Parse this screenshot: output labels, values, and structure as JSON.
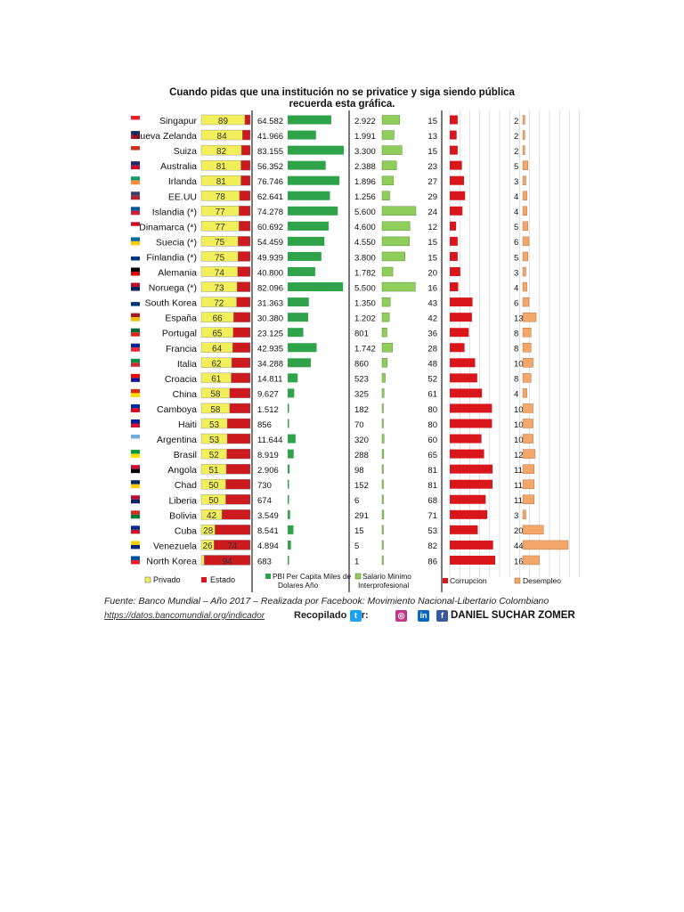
{
  "title": {
    "line1": "Cuando pidas que una institución no se privatice y siga siendo pública",
    "line2": "recuerda esta gráfica."
  },
  "legend": {
    "privado": "Privado",
    "estado": "Estado",
    "pbi": "PBI Per Capita Miles de Dolares Año",
    "salario": "Salario Minimo Interprofesional",
    "corrupcion": "Corrupcion",
    "desempleo": "Desempleo"
  },
  "footer": {
    "source": "Fuente: Banco Mundial – Año 2017 –  Realizada por Facebook: Movimiento Nacional-Libertario Colombiano",
    "url": "https://datos.bancomundial.org/indicador",
    "compiled_by": "Recopilado por:",
    "author": "DANIEL SUCHAR ZOMER"
  },
  "colors": {
    "privado": "#f2f05a",
    "estado": "#cc1a1f",
    "pbi": "#2ea34a",
    "salario": "#8fce5a",
    "corrupcion": "#d8161c",
    "desempleo": "#f4a76b"
  },
  "icons": [
    "twitter-icon",
    "instagram-icon",
    "linkedin-icon",
    "facebook-icon"
  ],
  "chart_data": {
    "type": "bar",
    "title": "Cuando pidas que una institución no se privatice y siga siendo pública recuerda esta gráfica.",
    "categories": [
      "Singapur",
      "Nueva Zelanda",
      "Suiza",
      "Australia",
      "Irlanda",
      "EE.UU",
      "Islandia (*)",
      "Dinamarca (*)",
      "Suecia (*)",
      "Finlandia (*)",
      "Alemania",
      "Noruega (*)",
      "South Korea",
      "España",
      "Portugal",
      "Francia",
      "Italia",
      "Croacia",
      "China",
      "Camboya",
      "Haiti",
      "Argentina",
      "Brasil",
      "Angola",
      "Chad",
      "Liberia",
      "Bolivia",
      "Cuba",
      "Venezuela",
      "North Korea"
    ],
    "flag_colors": [
      [
        "#e8212b",
        "#ffffff"
      ],
      [
        "#1d2f6f",
        "#c8102e"
      ],
      [
        "#d52b1e",
        "#ffffff"
      ],
      [
        "#1a2a6c",
        "#c8102e"
      ],
      [
        "#169b62",
        "#ff883e"
      ],
      [
        "#3c3b6e",
        "#b22234"
      ],
      [
        "#02529c",
        "#dc1e35"
      ],
      [
        "#c8102e",
        "#ffffff"
      ],
      [
        "#006aa7",
        "#fecc00"
      ],
      [
        "#ffffff",
        "#003580"
      ],
      [
        "#000000",
        "#dd0000"
      ],
      [
        "#ba0c2f",
        "#00205b"
      ],
      [
        "#ffffff",
        "#003478"
      ],
      [
        "#aa151b",
        "#f1bf00"
      ],
      [
        "#046a38",
        "#da291c"
      ],
      [
        "#002395",
        "#ed2939"
      ],
      [
        "#009246",
        "#ce2b37"
      ],
      [
        "#ff0000",
        "#171796"
      ],
      [
        "#de2910",
        "#ffde00"
      ],
      [
        "#032ea1",
        "#e00025"
      ],
      [
        "#00209f",
        "#d21034"
      ],
      [
        "#74acdf",
        "#ffffff"
      ],
      [
        "#009c3b",
        "#ffdf00"
      ],
      [
        "#cc092f",
        "#000000"
      ],
      [
        "#002664",
        "#fecb00"
      ],
      [
        "#bf0a30",
        "#002868"
      ],
      [
        "#d52b1e",
        "#007934"
      ],
      [
        "#002a8f",
        "#cf142b"
      ],
      [
        "#ffcc00",
        "#00247d"
      ],
      [
        "#024fa2",
        "#ed1c27"
      ]
    ],
    "series": [
      {
        "name": "Privado",
        "values": [
          89,
          84,
          82,
          81,
          81,
          78,
          77,
          77,
          75,
          75,
          74,
          73,
          72,
          66,
          65,
          64,
          62,
          61,
          58,
          58,
          53,
          53,
          52,
          51,
          50,
          50,
          42,
          28,
          26,
          null
        ]
      },
      {
        "name": "Estado",
        "values": [
          null,
          null,
          null,
          null,
          null,
          null,
          null,
          null,
          null,
          null,
          null,
          null,
          null,
          null,
          null,
          null,
          null,
          null,
          null,
          null,
          null,
          null,
          null,
          null,
          null,
          null,
          null,
          null,
          74,
          94
        ]
      },
      {
        "name": "PBI Per Capita Miles de Dolares Año",
        "values": [
          64.582,
          41.966,
          83.155,
          56.352,
          76.746,
          62.641,
          74.278,
          60.692,
          54.459,
          49.939,
          40.8,
          82.096,
          31.363,
          30.38,
          23.125,
          42.935,
          34.288,
          14.811,
          9.627,
          1.512,
          856,
          11.644,
          8.919,
          2.906,
          730,
          674,
          3.549,
          8.541,
          4.894,
          683
        ],
        "labels": [
          "64.582",
          "41.966",
          "83.155",
          "56.352",
          "76.746",
          "62.641",
          "74.278",
          "60.692",
          "54.459",
          "49.939",
          "40.800",
          "82.096",
          "31.363",
          "30.380",
          "23.125",
          "42.935",
          "34.288",
          "14.811",
          "9.627",
          "1.512",
          "856",
          "11.644",
          "8.919",
          "2.906",
          "730",
          "674",
          "3.549",
          "8.541",
          "4.894",
          "683"
        ]
      },
      {
        "name": "Salario Minimo Interprofesional",
        "values": [
          2922,
          1991,
          3300,
          2388,
          1896,
          1256,
          5600,
          4600,
          4550,
          3800,
          1782,
          5500,
          1350,
          1202,
          801,
          1742,
          860,
          523,
          325,
          182,
          70,
          320,
          288,
          98,
          152,
          6,
          291,
          15,
          5,
          1
        ],
        "labels": [
          "2.922",
          "1.991",
          "3.300",
          "2.388",
          "1.896",
          "1.256",
          "5.600",
          "4.600",
          "4.550",
          "3.800",
          "1.782",
          "5.500",
          "1.350",
          "1.202",
          "801",
          "1.742",
          "860",
          "523",
          "325",
          "182",
          "70",
          "320",
          "288",
          "98",
          "152",
          "6",
          "291",
          "15",
          "5",
          "1"
        ]
      },
      {
        "name": "Corrupcion",
        "values": [
          15,
          13,
          15,
          23,
          27,
          29,
          24,
          12,
          15,
          15,
          20,
          16,
          43,
          42,
          36,
          28,
          48,
          52,
          61,
          80,
          80,
          60,
          65,
          81,
          81,
          68,
          71,
          53,
          82,
          86
        ]
      },
      {
        "name": "Desempleo",
        "values": [
          2,
          2,
          2,
          5,
          3,
          4,
          4,
          5,
          6,
          5,
          3,
          4,
          6,
          13,
          8,
          8,
          10,
          8,
          4,
          10,
          10,
          10,
          12,
          11,
          11,
          11,
          3,
          20,
          44,
          16
        ]
      }
    ]
  }
}
